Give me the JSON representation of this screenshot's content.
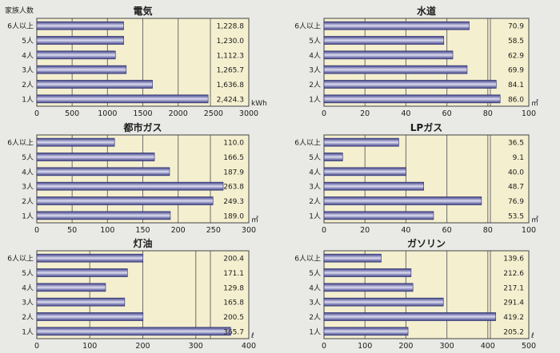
{
  "household_label": "家族人数",
  "colors": {
    "page_bg": "#e9e9e6",
    "plot_bg": "#f4efcf",
    "grid": "#6d6d6d",
    "bar_dark": "#3d3f86",
    "bar_light": "#dcdcf0",
    "text": "#1c1c1c"
  },
  "chart_data": [
    {
      "type": "bar",
      "orientation": "horizontal",
      "title": "電気",
      "unit": "kWh",
      "categories": [
        "6人以上",
        "5人",
        "4人",
        "3人",
        "2人",
        "1人"
      ],
      "values": [
        1228.8,
        1230.0,
        1112.3,
        1265.7,
        1636.8,
        2424.3
      ],
      "value_labels": [
        "1,228.8",
        "1,230.0",
        "1,112.3",
        "1,265.7",
        "1,636.8",
        "2,424.3"
      ],
      "xlim": [
        0,
        3000
      ],
      "ticks": [
        0,
        500,
        1000,
        1500,
        2000,
        2500,
        3000
      ],
      "tick_labels": [
        "0",
        "500",
        "1000",
        "1500",
        "2000",
        "2500",
        "3000"
      ],
      "grid": true
    },
    {
      "type": "bar",
      "orientation": "horizontal",
      "title": "水道",
      "unit": "㎥",
      "categories": [
        "6人以上",
        "5人",
        "4人",
        "3人",
        "2人",
        "1人"
      ],
      "values": [
        70.9,
        58.5,
        62.9,
        69.9,
        84.1,
        86.0
      ],
      "value_labels": [
        "70.9",
        "58.5",
        "62.9",
        "69.9",
        "84.1",
        "86.0"
      ],
      "xlim": [
        0,
        100
      ],
      "ticks": [
        0,
        20,
        40,
        60,
        80,
        100
      ],
      "tick_labels": [
        "0",
        "20",
        "40",
        "60",
        "80",
        "100"
      ],
      "grid": true
    },
    {
      "type": "bar",
      "orientation": "horizontal",
      "title": "都市ガス",
      "unit": "㎥",
      "categories": [
        "6人以上",
        "5人",
        "4人",
        "3人",
        "2人",
        "1人"
      ],
      "values": [
        110.0,
        166.5,
        187.9,
        263.8,
        249.3,
        189.0
      ],
      "value_labels": [
        "110.0",
        "166.5",
        "187.9",
        "263.8",
        "249.3",
        "189.0"
      ],
      "xlim": [
        0,
        300
      ],
      "ticks": [
        0,
        50,
        100,
        150,
        200,
        250,
        300
      ],
      "tick_labels": [
        "0",
        "50",
        "100",
        "150",
        "200",
        "250",
        "300"
      ],
      "grid": true
    },
    {
      "type": "bar",
      "orientation": "horizontal",
      "title": "LPガス",
      "unit": "㎥",
      "categories": [
        "6人以上",
        "5人",
        "4人",
        "3人",
        "2人",
        "1人"
      ],
      "values": [
        36.5,
        9.1,
        40.0,
        48.7,
        76.9,
        53.5
      ],
      "value_labels": [
        "36.5",
        "9.1",
        "40.0",
        "48.7",
        "76.9",
        "53.5"
      ],
      "xlim": [
        0,
        100
      ],
      "ticks": [
        0,
        20,
        40,
        60,
        80,
        100
      ],
      "tick_labels": [
        "0",
        "20",
        "40",
        "60",
        "80",
        "100"
      ],
      "grid": true
    },
    {
      "type": "bar",
      "orientation": "horizontal",
      "title": "灯油",
      "unit": "ℓ",
      "categories": [
        "6人以上",
        "5人",
        "4人",
        "3人",
        "2人",
        "1人"
      ],
      "values": [
        200.4,
        171.1,
        129.8,
        165.8,
        200.5,
        365.7
      ],
      "value_labels": [
        "200.4",
        "171.1",
        "129.8",
        "165.8",
        "200.5",
        "365.7"
      ],
      "xlim": [
        0,
        400
      ],
      "ticks": [
        0,
        100,
        200,
        300,
        400
      ],
      "tick_labels": [
        "0",
        "100",
        "200",
        "300",
        "400"
      ],
      "grid": true
    },
    {
      "type": "bar",
      "orientation": "horizontal",
      "title": "ガソリン",
      "unit": "ℓ",
      "categories": [
        "6人以上",
        "5人",
        "4人",
        "3人",
        "2人",
        "1人"
      ],
      "values": [
        139.6,
        212.6,
        217.1,
        291.4,
        419.2,
        205.2
      ],
      "value_labels": [
        "139.6",
        "212.6",
        "217.1",
        "291.4",
        "419.2",
        "205.2"
      ],
      "xlim": [
        0,
        500
      ],
      "ticks": [
        0,
        100,
        200,
        300,
        400,
        500
      ],
      "tick_labels": [
        "0",
        "100",
        "200",
        "300",
        "400",
        "500"
      ],
      "grid": true
    }
  ]
}
